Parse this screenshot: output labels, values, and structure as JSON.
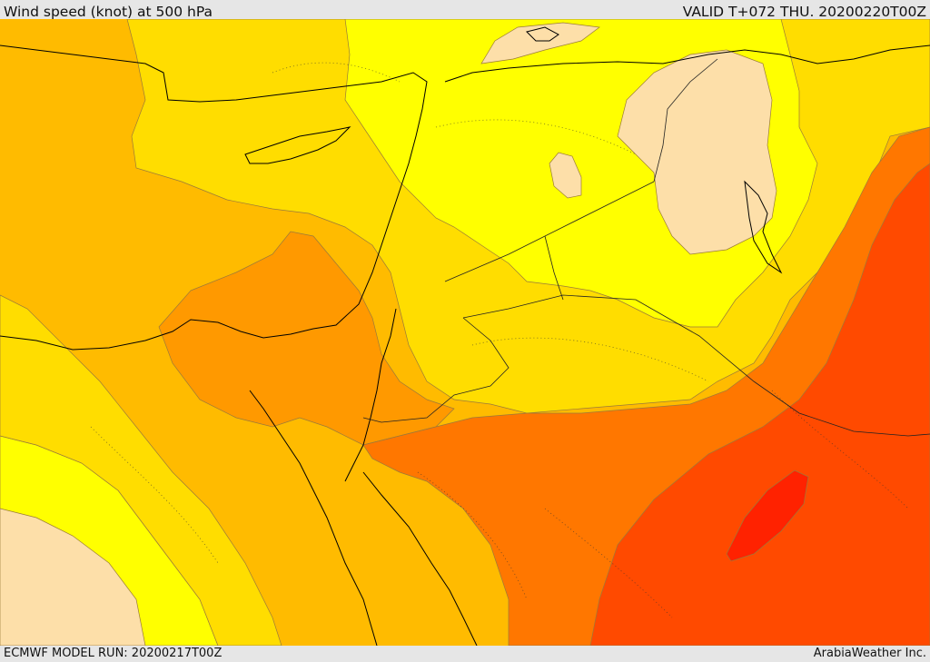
{
  "header": {
    "title": "Wind speed (knot) at 500 hPa",
    "valid": "VALID T+072 THU. 20200220T00Z"
  },
  "footer": {
    "model_run": "ECMWF MODEL RUN: 20200217T00Z",
    "credit": "ArabiaWeather Inc."
  },
  "map": {
    "variable": "wind speed",
    "unit": "knot",
    "level": "500 hPa",
    "band_colors": [
      "#fddfa9",
      "#ffff00",
      "#ffdd00",
      "#ffbb00",
      "#ff9900",
      "#ff7700",
      "#ff4a00",
      "#ff2200"
    ]
  }
}
